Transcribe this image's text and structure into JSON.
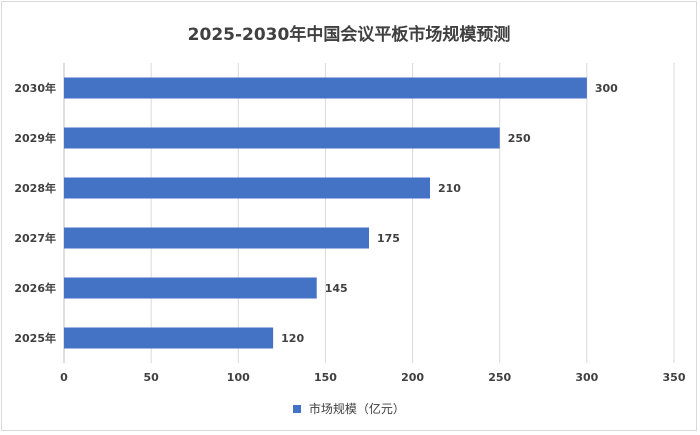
{
  "chart_data": {
    "type": "bar",
    "orientation": "horizontal",
    "title": "2025-2030年中国会议平板市场规模预测",
    "categories": [
      "2030年",
      "2029年",
      "2028年",
      "2027年",
      "2026年",
      "2025年"
    ],
    "series": [
      {
        "name": "市场规模（亿元）",
        "values": [
          300,
          250,
          210,
          175,
          145,
          120
        ]
      }
    ],
    "xlim": [
      0,
      350
    ],
    "xticks": [
      0,
      50,
      100,
      150,
      200,
      250,
      300,
      350
    ],
    "grid": true,
    "legend_position": "bottom",
    "bar_color": "#4472C4"
  }
}
